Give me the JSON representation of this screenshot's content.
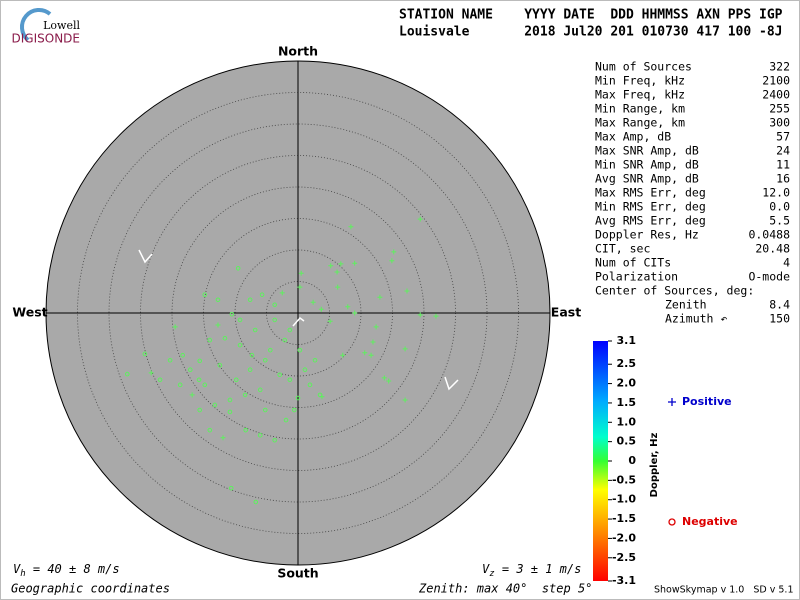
{
  "logo": {
    "top": "Lowell",
    "bottom": "DIGISONDE"
  },
  "header": {
    "labels": "STATION NAME    YYYY DATE  DDD HHMMSS AXN PPS IGP",
    "values": "Louisvale       2018 Jul20 201 010730 417 100 -8J"
  },
  "stats": [
    [
      "Num of Sources",
      "322"
    ],
    [
      "Min Freq, kHz",
      "2100"
    ],
    [
      "Max Freq, kHz",
      "2400"
    ],
    [
      "Min Range, km",
      "255"
    ],
    [
      "Max Range, km",
      "300"
    ],
    [
      "Max Amp, dB",
      "57"
    ],
    [
      "Max SNR Amp, dB",
      "24"
    ],
    [
      "Min SNR Amp, dB",
      "11"
    ],
    [
      "Avg SNR Amp, dB",
      "16"
    ],
    [
      "Max RMS Err, deg",
      "12.0"
    ],
    [
      "Min RMS Err, deg",
      "0.0"
    ],
    [
      "Avg RMS Err, deg",
      "5.5"
    ],
    [
      "Doppler Res, Hz",
      "0.0488"
    ],
    [
      "CIT, sec",
      "20.48"
    ],
    [
      "Num of CITs",
      "4"
    ],
    [
      "Polarization",
      "O-mode"
    ]
  ],
  "center": {
    "title": "Center of Sources, deg:",
    "rows": [
      [
        "Zenith",
        "8.4"
      ],
      [
        "Azimuth ↶",
        "150"
      ]
    ]
  },
  "chart_data": {
    "type": "skymap",
    "compass": {
      "north": "North",
      "south": "South",
      "west": "West",
      "east": "East"
    },
    "rlim": [
      0,
      40
    ],
    "rticks": [
      5,
      10,
      15,
      20,
      25,
      30,
      35
    ],
    "series": [
      {
        "name": "Positive",
        "marker": "+",
        "color": "#0000cc",
        "point_color": "#5ef05e",
        "x": [
          19.4,
          8.4,
          15.2,
          14.9,
          5.2,
          6.8,
          9.0,
          6.2,
          6.3,
          13.0,
          17.3,
          7.9,
          9.0,
          12.4,
          11.9,
          11.6,
          7.1,
          10.6,
          17.0,
          13.7,
          14.4,
          17.0,
          5.1,
          3.7,
          0.5,
          0.3,
          2.4,
          3.8,
          -12.7,
          -19.5,
          -23.3,
          -11.9,
          -16.8,
          -2.5,
          21.9,
          19.4
        ],
        "y": [
          14.9,
          13.7,
          9.7,
          8.3,
          7.5,
          7.8,
          7.9,
          6.5,
          4.1,
          2.5,
          3.5,
          1.0,
          0,
          -2.2,
          -4.6,
          -6.7,
          -6.7,
          -6.3,
          -5.7,
          -10.3,
          -10.8,
          -13.8,
          -1.3,
          0.6,
          6.3,
          4.1,
          1.7,
          -13.3,
          -1.9,
          -2.2,
          -9.5,
          -19.8,
          -13.0,
          3.2,
          -0.5,
          -0.3
        ]
      },
      {
        "name": "Negative",
        "marker": "o",
        "color": "#dd0000",
        "point_color": "#5ef05e",
        "x": [
          -9.5,
          -10.5,
          -11.6,
          -14.0,
          -15.6,
          -15.7,
          -13.2,
          -10.8,
          -8.4,
          -6.0,
          -7.6,
          -5.2,
          -2.9,
          -1.3,
          -4.4,
          -6.8,
          -9.2,
          -12.4,
          -14.8,
          -17.1,
          -20.3,
          -24.3,
          -27.1,
          -21.9,
          -18.7,
          -15.6,
          -14.0,
          -10.8,
          -8.3,
          -6.0,
          -3.7,
          -1.9,
          -0.6,
          0,
          1.1,
          0.3,
          2.7,
          1.9,
          3.5,
          -2.1,
          -1.3,
          -3.7,
          -7.6,
          -5.7,
          -3.7,
          -10.6,
          -6.7,
          -9.2,
          -12.7,
          -14.8,
          -18.3,
          -5.2,
          -9.8,
          -7.3
        ],
        "y": [
          7.1,
          -0.2,
          -4.0,
          -4.3,
          -7.6,
          -10.6,
          -14.6,
          -13.8,
          -13.0,
          -12.2,
          -9.0,
          -7.5,
          -9.8,
          -10.6,
          -5.9,
          -2.7,
          -5.1,
          -8.3,
          -11.4,
          -9.0,
          -7.5,
          -6.5,
          -9.7,
          -10.6,
          -11.4,
          -15.4,
          -18.6,
          -15.7,
          -18.6,
          -19.4,
          -20.2,
          -17.0,
          -15.4,
          -13.5,
          -9.0,
          -5.9,
          -7.5,
          -11.4,
          -13.0,
          -4.3,
          -2.7,
          -1.1,
          2.1,
          2.9,
          1.3,
          -27.8,
          -30.0,
          -1.1,
          2.1,
          2.9,
          -6.7,
          -15.4,
          -10.6,
          -6.7
        ]
      }
    ],
    "colorbar": {
      "label": "Doppler, Hz",
      "ylim": [
        -3.1,
        3.1
      ],
      "yticks": [
        3.1,
        2.5,
        {
          "value": 2.0,
          "label": "2.0"
        },
        1.5,
        {
          "value": 1.0,
          "label": "1.0"
        },
        0.5,
        0,
        -0.5,
        {
          "value": -1.0,
          "label": "-1.0"
        },
        -1.5,
        {
          "value": -2.0,
          "label": "-2.0"
        },
        -2.5,
        -3.1
      ]
    }
  },
  "footer": {
    "vh": {
      "symbol": "V",
      "sub": "h",
      "text": " = 40 ± 8 m/s"
    },
    "vz": {
      "symbol": "V",
      "sub": "z",
      "text": " = 3 ± 1 m/s"
    },
    "coords": "Geographic coordinates",
    "zenith": "Zenith: max 40°  step 5°",
    "version": "ShowSkymap v 1.0   SD v 5.1"
  }
}
